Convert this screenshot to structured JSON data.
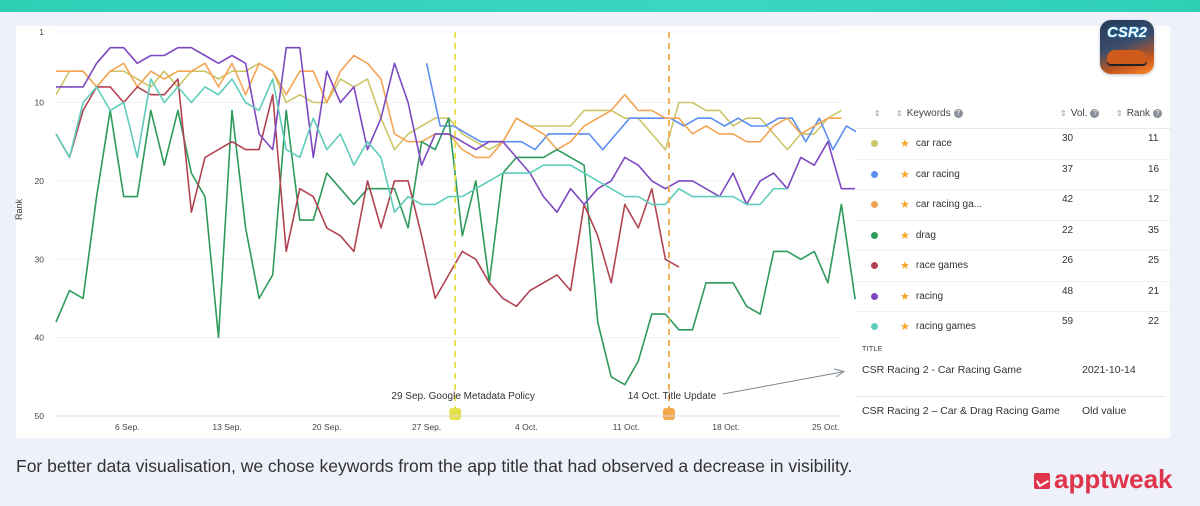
{
  "caption": "For better data visualisation, we chose keywords from the app title that had observed a decrease in visibility.",
  "brand": "apptweak",
  "app_icon": {
    "logo_text": "CSR2"
  },
  "keyword_table": {
    "headers": {
      "keywords": "Keywords",
      "volume": "Vol.",
      "rank": "Rank"
    },
    "rows": [
      {
        "keyword": "car race",
        "volume": "30",
        "rank": "11",
        "color": "#cdc56a"
      },
      {
        "keyword": "car racing",
        "volume": "37",
        "rank": "16",
        "color": "#5b8ff0"
      },
      {
        "keyword": "car racing ga...",
        "volume": "42",
        "rank": "12",
        "color": "#f3a555"
      },
      {
        "keyword": "drag",
        "volume": "22",
        "rank": "35",
        "color": "#2e9a5b"
      },
      {
        "keyword": "race games",
        "volume": "26",
        "rank": "25",
        "color": "#b24352"
      },
      {
        "keyword": "racing",
        "volume": "48",
        "rank": "21",
        "color": "#7d48c1"
      },
      {
        "keyword": "racing games",
        "volume": "59",
        "rank": "22",
        "color": "#5fcdbb"
      }
    ]
  },
  "title_block": {
    "label": "TITLE",
    "rows": [
      {
        "title": "CSR Racing 2 - Car Racing Game",
        "date": "2021-10-14"
      },
      {
        "title": "CSR Racing 2 – Car & Drag Racing Game",
        "date": "Old value"
      }
    ]
  },
  "chart_data": {
    "type": "line",
    "ylabel": "Rank",
    "ylim": [
      1,
      50
    ],
    "y_inverted": true,
    "y_ticks": [
      "1",
      "10",
      "20",
      "30",
      "40",
      "50"
    ],
    "x_tick_labels": [
      "6 Sep.",
      "13 Sep.",
      "20 Sep.",
      "27 Sep.",
      "4 Oct.",
      "11 Oct.",
      "18 Oct.",
      "25 Oct."
    ],
    "x_tick_days": [
      6,
      13,
      20,
      27,
      34,
      41,
      48,
      55
    ],
    "x_range_days": [
      1,
      56
    ],
    "events": [
      {
        "label": "29 Sep. Google Metadata Policy",
        "day": 29,
        "color": "#e6e04a"
      },
      {
        "label": "14 Oct. Title Update",
        "day": 44,
        "color": "#f3a84a"
      }
    ],
    "series": [
      {
        "name": "car race",
        "color": "#cdc56a",
        "start_day": 1,
        "values": [
          9,
          6,
          6,
          8,
          6,
          6,
          7,
          8,
          6,
          8,
          6,
          6,
          7,
          6,
          6,
          5,
          6,
          10,
          9,
          10,
          10,
          7,
          8,
          7,
          12,
          16,
          14,
          13,
          12,
          12,
          14,
          15,
          16,
          15,
          12,
          13,
          13,
          13,
          13,
          11,
          11,
          11,
          12,
          12,
          14,
          16,
          10,
          10,
          11,
          11,
          13,
          12,
          12,
          14,
          16,
          14,
          14,
          12,
          11
        ]
      },
      {
        "name": "car racing",
        "color": "#5b8ff0",
        "start_day": 27,
        "values": [
          5,
          13,
          13,
          14,
          15,
          15,
          15,
          15,
          16,
          14,
          14,
          14,
          14,
          16,
          14,
          12,
          12,
          12,
          12,
          13,
          12,
          12,
          13,
          12,
          13,
          13,
          12,
          12,
          15,
          12,
          16,
          13,
          14,
          16,
          14,
          16,
          15,
          15,
          10,
          16,
          16
        ]
      },
      {
        "name": "car racing games",
        "color": "#f3a555",
        "start_day": 1,
        "values": [
          6,
          6,
          6,
          8,
          6,
          5,
          8,
          6,
          7,
          6,
          6,
          5,
          8,
          5,
          9,
          5,
          6,
          9,
          6,
          6,
          10,
          6,
          4,
          5,
          7,
          14,
          15,
          15,
          14,
          14,
          16,
          17,
          17,
          15,
          12,
          13,
          14,
          16,
          15,
          13,
          12,
          11,
          9,
          11,
          11,
          12,
          12,
          14,
          13,
          14,
          14,
          15,
          15,
          13,
          12,
          14,
          13,
          12,
          12
        ]
      },
      {
        "name": "drag",
        "color": "#2e9a5b",
        "start_day": 1,
        "values": [
          38,
          34,
          35,
          22,
          11,
          22,
          22,
          11,
          18,
          11,
          19,
          22,
          40,
          11,
          26,
          35,
          32,
          11,
          25,
          25,
          19,
          21,
          23,
          21,
          21,
          21,
          26,
          15,
          16,
          12,
          27,
          20,
          33,
          19,
          17,
          17,
          17,
          16,
          17,
          18,
          38,
          45,
          46,
          43,
          37,
          37,
          39,
          39,
          33,
          33,
          33,
          36,
          37,
          29,
          29,
          30,
          29,
          33,
          23,
          35,
          35
        ]
      },
      {
        "name": "race games",
        "color": "#b24352",
        "start_day": 1,
        "values": [
          14,
          17,
          11,
          8,
          8,
          10,
          8,
          9,
          9,
          7,
          24,
          17,
          16,
          15,
          16,
          16,
          9,
          29,
          21,
          22,
          26,
          27,
          29,
          20,
          26,
          20,
          20,
          27,
          35,
          32,
          29,
          30,
          33,
          35,
          36,
          34,
          33,
          32,
          34,
          23,
          27,
          33,
          23,
          26,
          21,
          30,
          31
        ]
      },
      {
        "name": "racing",
        "color": "#7d48c1",
        "start_day": 1,
        "values": [
          8,
          8,
          8,
          5,
          3,
          3,
          5,
          4,
          4,
          3,
          3,
          4,
          5,
          4,
          5,
          14,
          16,
          3,
          3,
          17,
          6,
          10,
          8,
          16,
          12,
          5,
          10,
          18,
          14,
          14,
          15,
          16,
          15,
          15,
          17,
          19,
          22,
          24,
          21,
          23,
          21,
          20,
          17,
          18,
          20,
          21,
          20,
          20,
          21,
          22,
          19,
          23,
          20,
          19,
          21,
          17,
          18,
          15,
          21,
          21
        ]
      },
      {
        "name": "racing games",
        "color": "#5fcdbb",
        "start_day": 1,
        "values": [
          14,
          17,
          10,
          8,
          11,
          10,
          17,
          7,
          10,
          8,
          10,
          8,
          9,
          7,
          10,
          11,
          7,
          16,
          17,
          12,
          16,
          14,
          18,
          15,
          17,
          24,
          22,
          23,
          23,
          22,
          22,
          21,
          20,
          19,
          19,
          19,
          18,
          18,
          18,
          19,
          20,
          21,
          22,
          22,
          23,
          23,
          21,
          22,
          22,
          22,
          22,
          23,
          23,
          21,
          21
        ]
      }
    ]
  }
}
